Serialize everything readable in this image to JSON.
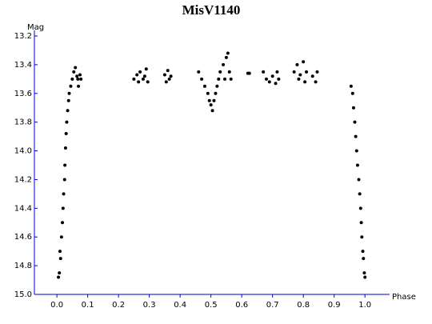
{
  "chart_data": {
    "type": "scatter",
    "title": "MisV1140",
    "x_label": "Phase",
    "y_label": "Mag",
    "color": "#000000",
    "axis_color": "#0000cc",
    "y_inverted": true,
    "xlim": [
      -0.073,
      1.08
    ],
    "ylim": [
      13.2,
      15.0
    ],
    "xticks": [
      {
        "value": 0,
        "label": "0.0"
      },
      0.1,
      0.2,
      0.3,
      0.4,
      0.5,
      0.6,
      0.7,
      0.8,
      0.9,
      {
        "value": 1,
        "label": "1.0"
      }
    ],
    "yticks": [
      13.2,
      13.4,
      13.6,
      13.8,
      {
        "value": 14,
        "label": "14.0"
      },
      14.2,
      14.4,
      14.6,
      14.8,
      {
        "value": 15,
        "label": "15.0"
      }
    ],
    "x": [
      0.005,
      0.008,
      0.01,
      0.012,
      0.015,
      0.018,
      0.02,
      0.022,
      0.025,
      0.026,
      0.028,
      0.03,
      0.032,
      0.035,
      0.038,
      0.04,
      0.045,
      0.05,
      0.055,
      0.06,
      0.065,
      0.068,
      0.07,
      0.075,
      0.078,
      0.25,
      0.26,
      0.265,
      0.27,
      0.28,
      0.285,
      0.29,
      0.295,
      0.35,
      0.355,
      0.36,
      0.365,
      0.37,
      0.46,
      0.47,
      0.48,
      0.49,
      0.495,
      0.5,
      0.505,
      0.51,
      0.515,
      0.52,
      0.525,
      0.53,
      0.54,
      0.545,
      0.55,
      0.555,
      0.56,
      0.565,
      0.62,
      0.625,
      0.67,
      0.68,
      0.69,
      0.7,
      0.71,
      0.715,
      0.72,
      0.77,
      0.78,
      0.785,
      0.79,
      0.8,
      0.805,
      0.81,
      0.83,
      0.84,
      0.845,
      0.955,
      0.96,
      0.963,
      0.967,
      0.97,
      0.973,
      0.976,
      0.98,
      0.983,
      0.986,
      0.988,
      0.99,
      0.993,
      0.995,
      0.998,
      1.0
    ],
    "values": [
      14.88,
      14.85,
      14.7,
      14.75,
      14.6,
      14.5,
      14.4,
      14.3,
      14.2,
      14.1,
      13.98,
      13.88,
      13.8,
      13.72,
      13.65,
      13.6,
      13.55,
      13.5,
      13.45,
      13.42,
      13.48,
      13.5,
      13.55,
      13.47,
      13.5,
      13.5,
      13.47,
      13.52,
      13.45,
      13.5,
      13.48,
      13.43,
      13.52,
      13.47,
      13.52,
      13.44,
      13.5,
      13.48,
      13.45,
      13.5,
      13.55,
      13.6,
      13.65,
      13.68,
      13.72,
      13.65,
      13.6,
      13.55,
      13.5,
      13.45,
      13.4,
      13.5,
      13.35,
      13.32,
      13.45,
      13.5,
      13.46,
      13.46,
      13.45,
      13.5,
      13.52,
      13.48,
      13.53,
      13.45,
      13.5,
      13.45,
      13.4,
      13.5,
      13.47,
      13.38,
      13.52,
      13.45,
      13.48,
      13.52,
      13.45,
      13.55,
      13.6,
      13.7,
      13.8,
      13.9,
      14.0,
      14.1,
      14.2,
      14.3,
      14.4,
      14.5,
      14.6,
      14.7,
      14.75,
      14.85,
      14.88
    ]
  }
}
